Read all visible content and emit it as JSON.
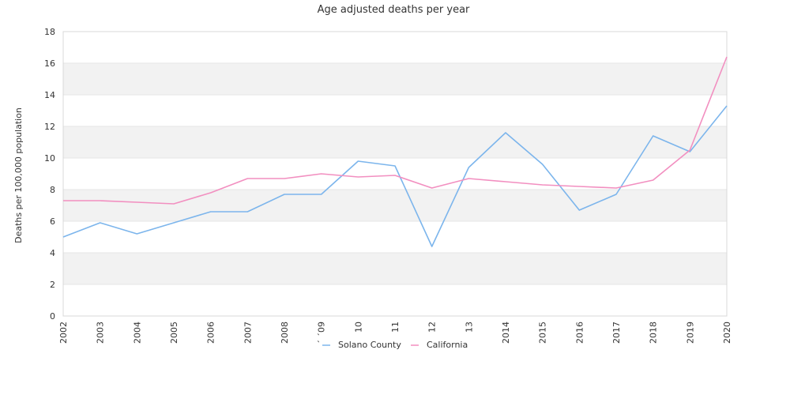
{
  "chart_data": {
    "type": "line",
    "title": "Age adjusted deaths per year",
    "xlabel": "",
    "ylabel": "Deaths per 100,000 population",
    "ylim": [
      0,
      18
    ],
    "yticks": [
      0,
      2,
      4,
      6,
      8,
      10,
      12,
      14,
      16,
      18
    ],
    "grid": "alternating horizontal bands",
    "legend_position": "bottom-center",
    "x": [
      "2002",
      "2003",
      "2004",
      "2005",
      "2006",
      "2007",
      "2008",
      "2009",
      "2010",
      "2011",
      "2012",
      "2013",
      "2014",
      "2015",
      "2016",
      "2017",
      "2018",
      "2019",
      "2020"
    ],
    "x_tick_labels": [
      "2002",
      "2003",
      "2004",
      "2005",
      "2006",
      "2007",
      "2008",
      "´ ´09",
      "10",
      "11",
      "12",
      "13",
      "2014",
      "2015",
      "2016",
      "2017",
      "2018",
      "2019",
      "2020"
    ],
    "series": [
      {
        "name": "Solano County",
        "color": "#7cb5ec",
        "values": [
          5.0,
          5.9,
          5.2,
          5.9,
          6.6,
          6.6,
          7.7,
          7.7,
          9.8,
          9.5,
          4.4,
          9.4,
          11.6,
          9.6,
          6.7,
          7.7,
          11.4,
          10.4,
          13.3
        ]
      },
      {
        "name": "California",
        "color": "#f28fc0",
        "values": [
          7.3,
          7.3,
          7.2,
          7.1,
          7.8,
          8.7,
          8.7,
          9.0,
          8.8,
          8.9,
          8.1,
          8.7,
          8.5,
          8.3,
          8.2,
          8.1,
          8.6,
          10.5,
          16.4
        ]
      }
    ]
  }
}
